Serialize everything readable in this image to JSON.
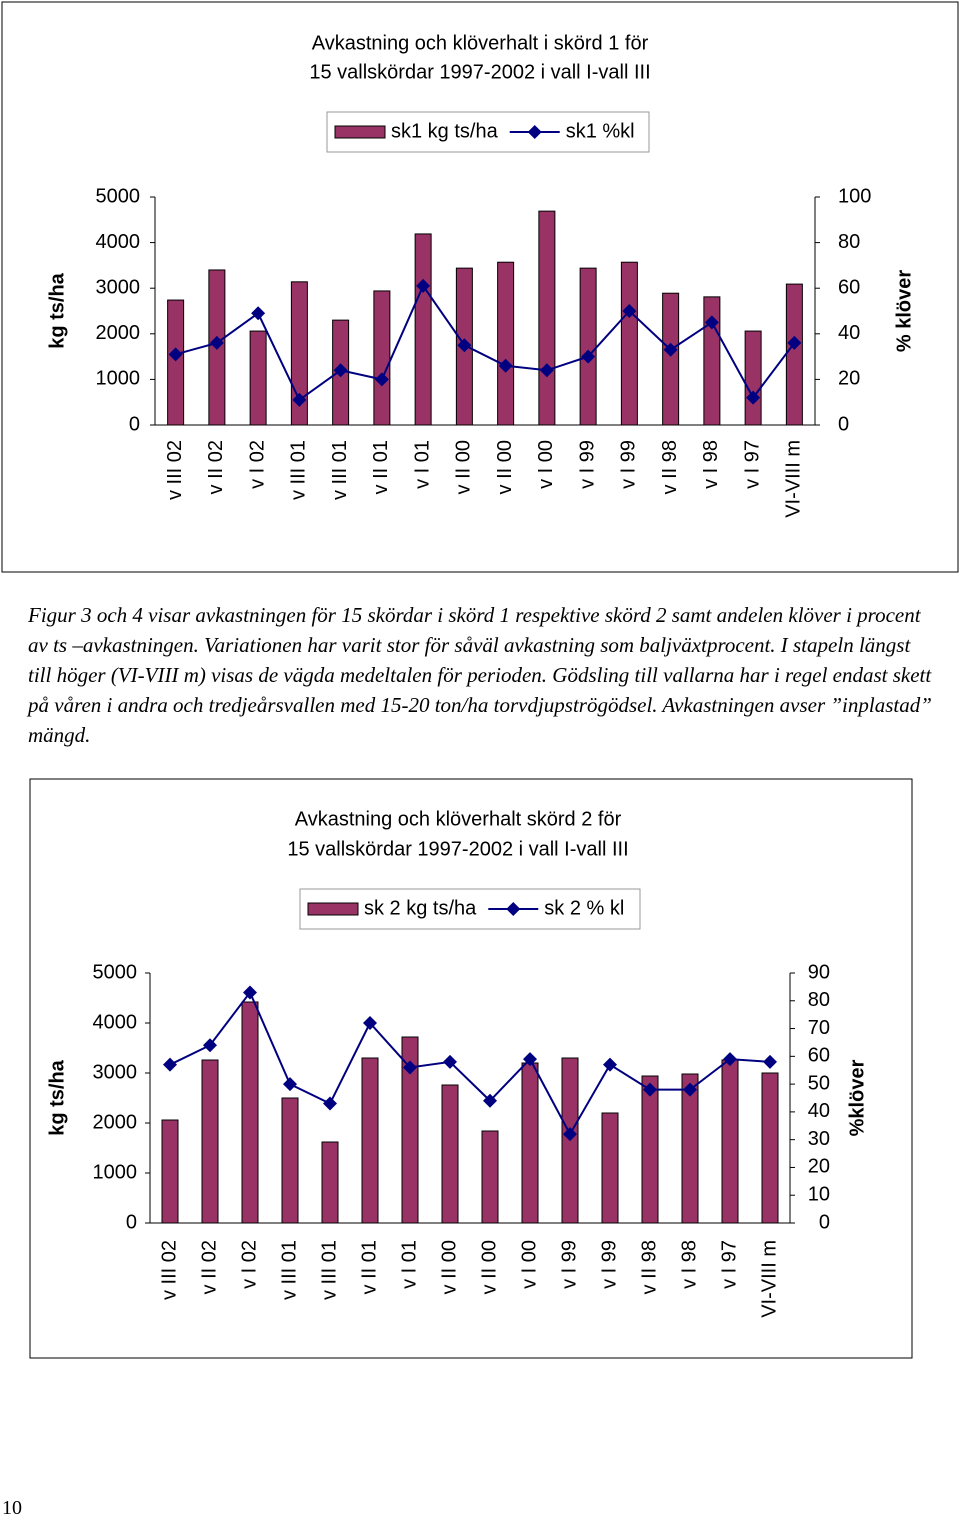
{
  "chart_data": [
    {
      "type": "bar",
      "title": [
        "Avkastning och klöverhalt i skörd 1 för",
        "15 vallskördar 1997-2002 i vall I-vall III"
      ],
      "y_label": "kg ts/ha",
      "y2_label": "% klöver",
      "legend": "top",
      "categories": [
        "v III 02",
        "v II 02",
        "v I 02",
        "v III 01",
        "v III 01",
        "v II 01",
        "v I 01",
        "v II 00",
        "v II 00",
        "v I  00",
        "v I  99",
        "v I  99",
        "v II 98",
        "v I 98",
        "v I  97",
        "VI-VIII m"
      ],
      "series": [
        {
          "name": "sk1 kg ts/ha",
          "type": "bar",
          "color": "#993366",
          "values": [
            2740,
            3400,
            2060,
            3140,
            2300,
            2940,
            4190,
            3440,
            3570,
            4690,
            3440,
            3570,
            2890,
            2810,
            2060,
            3090
          ]
        },
        {
          "name": "sk1 %kl",
          "type": "line",
          "axis": "y2",
          "color": "#000080",
          "values": [
            31,
            36,
            49,
            11,
            24,
            20,
            61,
            35,
            26,
            24,
            30,
            50,
            33,
            45,
            12,
            36
          ]
        }
      ],
      "ylim": [
        0,
        5000
      ],
      "yticks": [
        0,
        1000,
        2000,
        3000,
        4000,
        5000
      ],
      "y2lim": [
        0,
        100
      ],
      "y2ticks": [
        0,
        20,
        40,
        60,
        80,
        100
      ]
    },
    {
      "type": "bar",
      "title": [
        "Avkastning och klöverhalt skörd 2 för",
        "15 vallskördar 1997-2002 i vall I-vall III"
      ],
      "y_label": "kg ts/ha",
      "y2_label": "%klöver",
      "legend": "top",
      "categories": [
        "v III 02",
        "v II 02",
        "v I 02",
        "v III 01",
        "v III 01",
        "v II 01",
        "v I 01",
        "v II 00",
        "v II 00",
        "v I  00",
        "v I  99",
        "v I  99",
        "v II 98",
        "v I 98",
        "v I  97",
        "VI-VIII m"
      ],
      "series": [
        {
          "name": "sk 2 kg ts/ha",
          "type": "bar",
          "color": "#993366",
          "values": [
            2060,
            3260,
            4420,
            2500,
            1620,
            3300,
            3720,
            2760,
            1840,
            3200,
            3300,
            2200,
            2940,
            2980,
            3260,
            3000
          ]
        },
        {
          "name": "sk 2 % kl",
          "type": "line",
          "axis": "y2",
          "color": "#000080",
          "values": [
            57,
            64,
            83,
            50,
            43,
            72,
            56,
            58,
            44,
            59,
            32,
            57,
            48,
            48,
            59,
            58
          ]
        }
      ],
      "ylim": [
        0,
        5000
      ],
      "yticks": [
        0,
        1000,
        2000,
        3000,
        4000,
        5000
      ],
      "y2lim": [
        0,
        90
      ],
      "y2ticks": [
        0,
        10,
        20,
        30,
        40,
        50,
        60,
        70,
        80,
        90
      ]
    }
  ],
  "caption": "Figur 3 och 4 visar avkastningen för 15 skördar i skörd 1 respektive skörd 2 samt andelen klöver i procent av ts –avkastningen. Variationen har varit stor för såväl avkastning som baljväxtprocent. I stapeln längst till höger (VI-VIII m) visas de vägda medeltalen för perioden. Gödsling till vallarna har i regel endast skett på våren i andra och tredjeårsvallen med 15-20 ton/ha torvdjupströgödsel. Avkastningen avser ”inplastad” mängd.",
  "page_number": "10"
}
